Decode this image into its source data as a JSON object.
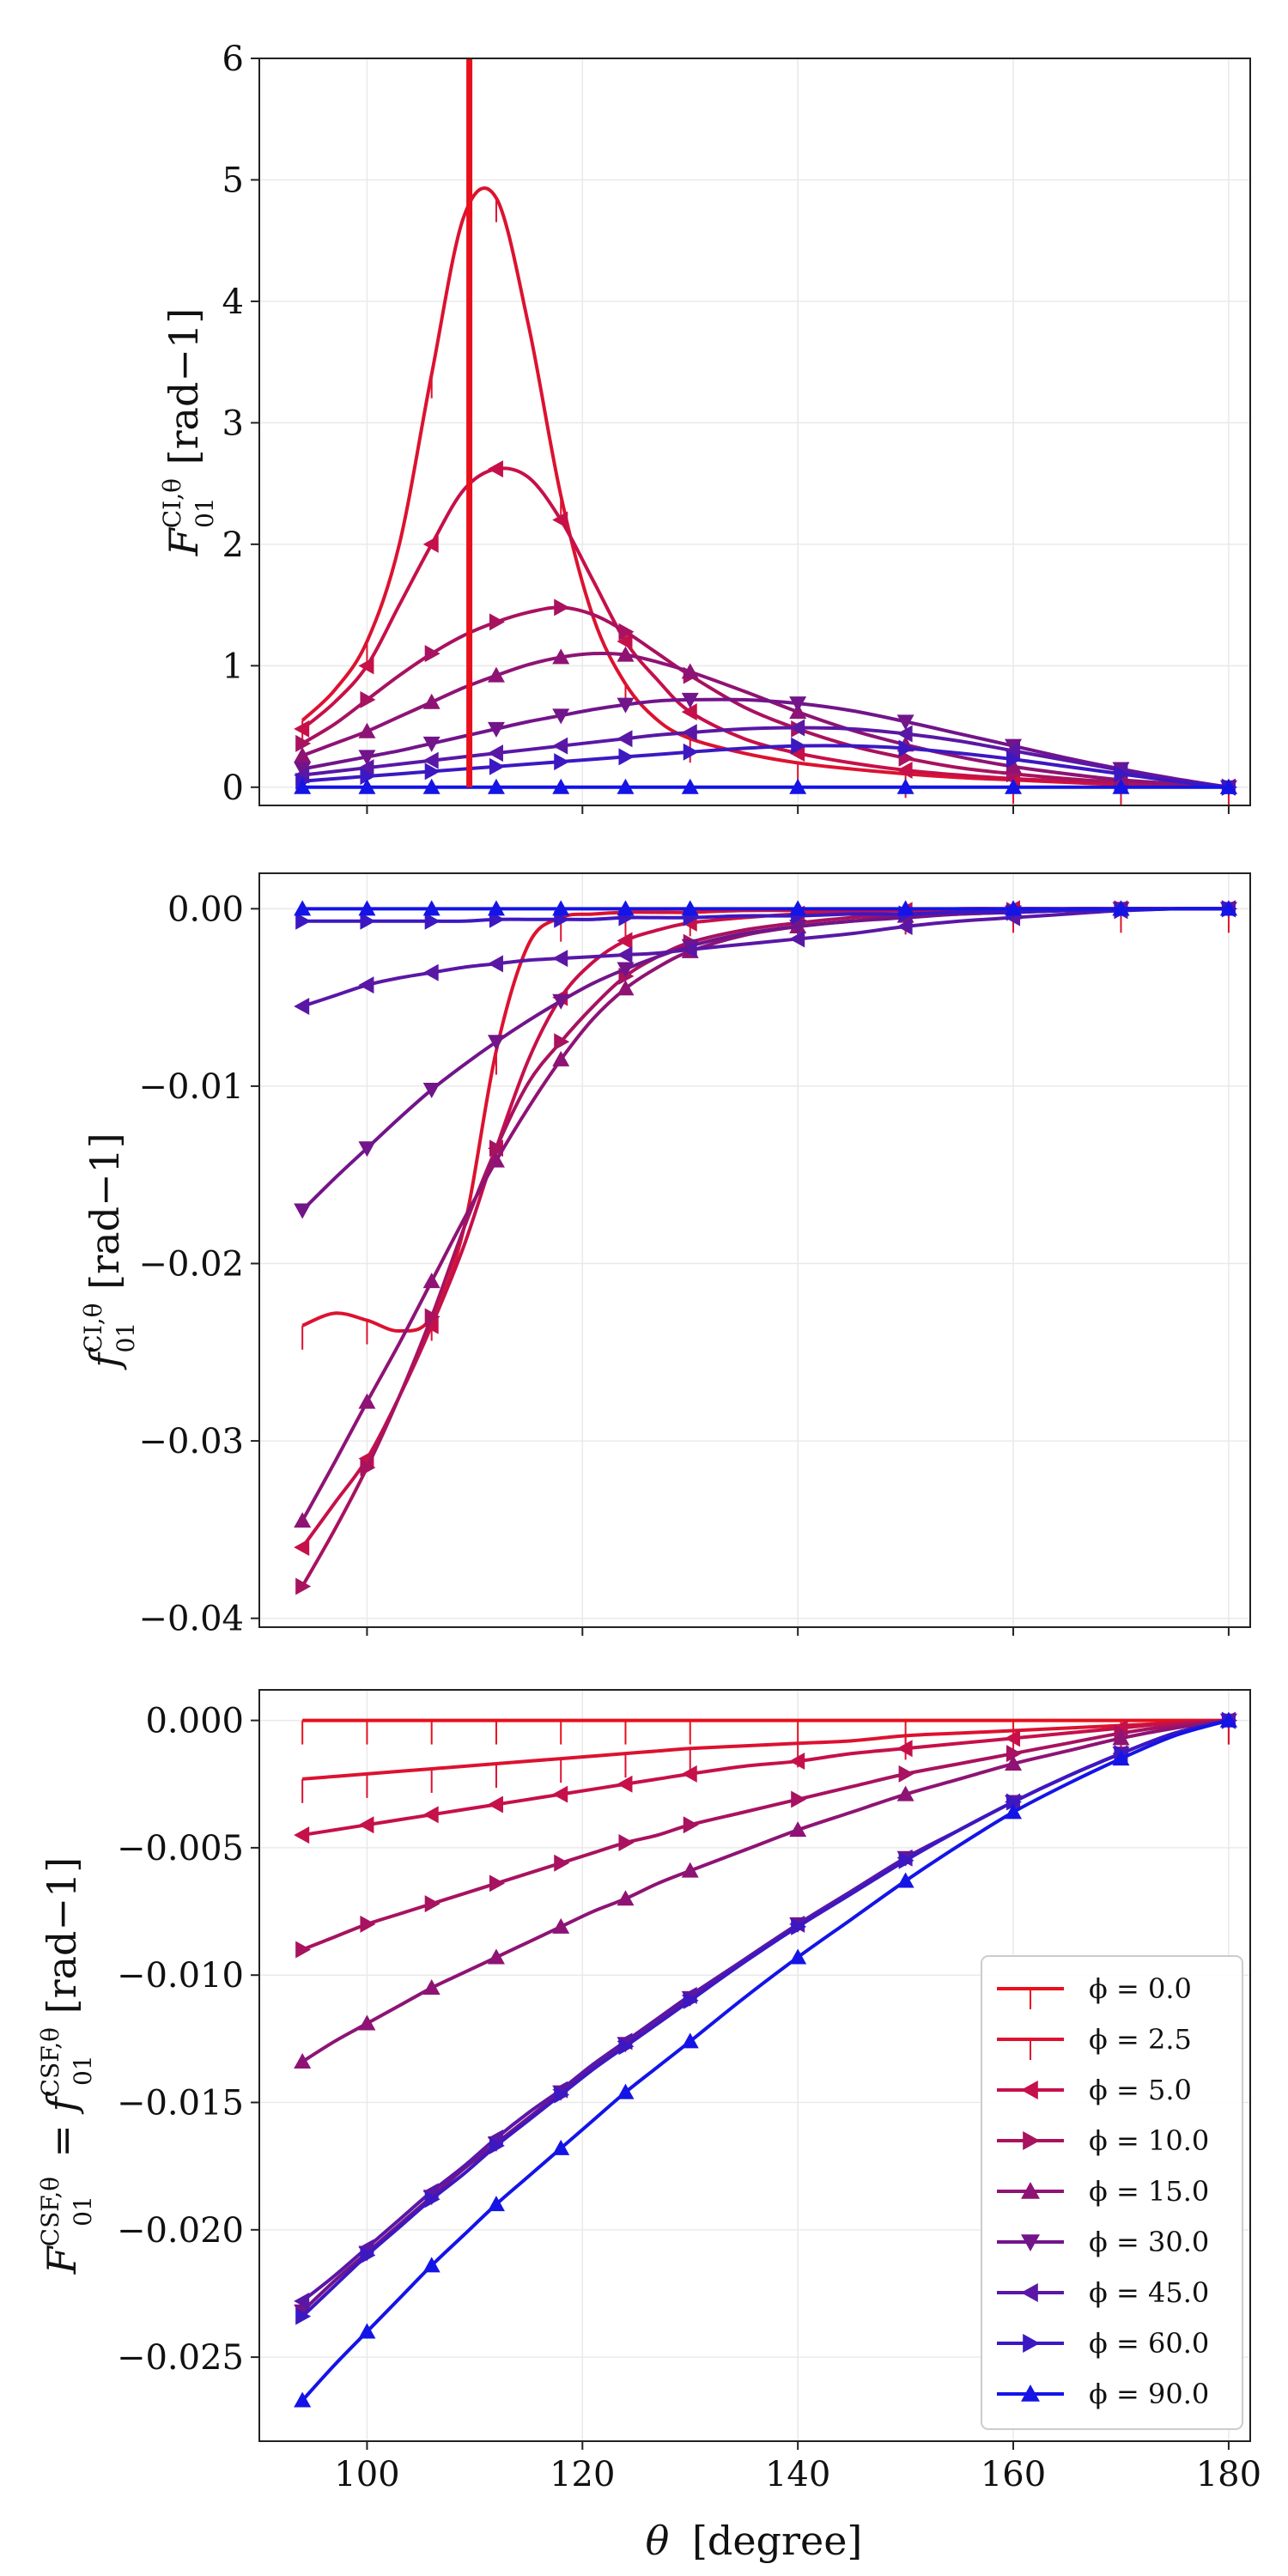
{
  "chart_data": {
    "type": "line",
    "shared_x": {
      "label_symbol": "θ",
      "label_unit": "[degree]",
      "range": [
        90,
        182
      ],
      "ticks": [
        100,
        120,
        140,
        160,
        180
      ],
      "tick_labels": [
        "100",
        "120",
        "140",
        "160",
        "180"
      ]
    },
    "legend": {
      "placement": "lower-right of bottom panel",
      "entries": [
        {
          "label": "ϕ = 0.0",
          "color": "#e8101c",
          "marker": "vline"
        },
        {
          "label": "ϕ = 2.5",
          "color": "#dc1230",
          "marker": "vline"
        },
        {
          "label": "ϕ = 5.0",
          "color": "#c61049",
          "marker": "tri-left"
        },
        {
          "label": "ϕ = 10.0",
          "color": "#a8125f",
          "marker": "tri-right"
        },
        {
          "label": "ϕ = 15.0",
          "color": "#8e1374",
          "marker": "tri-up"
        },
        {
          "label": "ϕ = 30.0",
          "color": "#72148a",
          "marker": "tri-down"
        },
        {
          "label": "ϕ = 45.0",
          "color": "#5a17a6",
          "marker": "tri-left"
        },
        {
          "label": "ϕ = 60.0",
          "color": "#3c18c2",
          "marker": "tri-right"
        },
        {
          "label": "ϕ = 90.0",
          "color": "#1414e6",
          "marker": "tri-up"
        }
      ]
    },
    "panels": [
      {
        "id": "top",
        "ylabel": "F₀₁^{CI,θ} [rad⁻¹]",
        "ylabel_base": "F",
        "ylabel_sub": "01",
        "ylabel_sup": "CI,θ",
        "ylabel_unit": "[rad−1]",
        "ylim": [
          -0.15,
          6
        ],
        "yticks": [
          0,
          1,
          2,
          3,
          4,
          5,
          6
        ],
        "ytick_labels": [
          "0",
          "1",
          "2",
          "3",
          "4",
          "5",
          "6"
        ],
        "vertical_line_x": 109.5,
        "x": [
          94,
          97,
          100,
          103,
          106,
          109,
          112,
          115,
          118,
          121,
          124,
          127,
          130,
          135,
          140,
          145,
          150,
          155,
          160,
          165,
          170,
          175,
          180
        ],
        "series": [
          {
            "name": "ϕ = 2.5",
            "values": [
              0.55,
              0.8,
              1.2,
              2.0,
              3.4,
              4.7,
              4.85,
              3.8,
              2.4,
              1.4,
              0.85,
              0.55,
              0.4,
              0.28,
              0.2,
              0.15,
              0.11,
              0.08,
              0.06,
              0.04,
              0.02,
              0.01,
              0.0
            ]
          },
          {
            "name": "ϕ = 5.0",
            "values": [
              0.48,
              0.7,
              1.0,
              1.5,
              2.0,
              2.45,
              2.62,
              2.55,
              2.2,
              1.7,
              1.2,
              0.88,
              0.62,
              0.4,
              0.28,
              0.2,
              0.14,
              0.1,
              0.07,
              0.05,
              0.03,
              0.01,
              0.0
            ]
          },
          {
            "name": "ϕ = 10.0",
            "values": [
              0.36,
              0.52,
              0.72,
              0.92,
              1.1,
              1.25,
              1.36,
              1.44,
              1.48,
              1.42,
              1.28,
              1.1,
              0.92,
              0.66,
              0.48,
              0.34,
              0.24,
              0.16,
              0.11,
              0.07,
              0.04,
              0.02,
              0.0
            ]
          },
          {
            "name": "ϕ = 15.0",
            "values": [
              0.26,
              0.36,
              0.46,
              0.58,
              0.7,
              0.82,
              0.92,
              1.01,
              1.07,
              1.1,
              1.09,
              1.03,
              0.95,
              0.79,
              0.62,
              0.47,
              0.35,
              0.25,
              0.17,
              0.11,
              0.06,
              0.03,
              0.0
            ]
          },
          {
            "name": "ϕ = 30.0",
            "values": [
              0.15,
              0.2,
              0.25,
              0.3,
              0.36,
              0.42,
              0.48,
              0.54,
              0.59,
              0.64,
              0.68,
              0.71,
              0.72,
              0.72,
              0.69,
              0.63,
              0.54,
              0.44,
              0.34,
              0.24,
              0.15,
              0.07,
              0.0
            ]
          },
          {
            "name": "ϕ = 45.0",
            "values": [
              0.1,
              0.13,
              0.16,
              0.19,
              0.22,
              0.25,
              0.28,
              0.31,
              0.34,
              0.37,
              0.4,
              0.43,
              0.45,
              0.48,
              0.49,
              0.48,
              0.44,
              0.38,
              0.3,
              0.22,
              0.14,
              0.06,
              0.0
            ]
          },
          {
            "name": "ϕ = 60.0",
            "values": [
              0.05,
              0.07,
              0.09,
              0.11,
              0.13,
              0.15,
              0.17,
              0.19,
              0.21,
              0.23,
              0.25,
              0.27,
              0.29,
              0.32,
              0.34,
              0.34,
              0.32,
              0.28,
              0.23,
              0.17,
              0.11,
              0.05,
              0.0
            ]
          },
          {
            "name": "ϕ = 90.0",
            "values": [
              0.0,
              0.0,
              0.0,
              0.0,
              0.0,
              0.0,
              0.0,
              0.0,
              0.0,
              0.0,
              0.0,
              0.0,
              0.0,
              0.0,
              0.0,
              0.0,
              0.0,
              0.0,
              0.0,
              0.0,
              0.0,
              0.0,
              0.0
            ]
          }
        ]
      },
      {
        "id": "middle",
        "ylabel": "f₀₁^{CI,θ} [rad⁻¹]",
        "ylabel_base": "f",
        "ylabel_sub": "01",
        "ylabel_sup": "CI,θ",
        "ylabel_unit": "[rad−1]",
        "ylim": [
          -0.0405,
          0.002
        ],
        "yticks": [
          0.0,
          -0.01,
          -0.02,
          -0.03,
          -0.04
        ],
        "ytick_labels": [
          "0.00",
          "−0.01",
          "−0.02",
          "−0.03",
          "−0.04"
        ],
        "x": [
          94,
          97,
          100,
          103,
          106,
          109,
          112,
          115,
          118,
          121,
          124,
          127,
          130,
          135,
          140,
          145,
          150,
          155,
          160,
          165,
          170,
          175,
          180
        ],
        "series": [
          {
            "name": "ϕ = 2.5",
            "values": [
              -0.0235,
              -0.0228,
              -0.0232,
              -0.0238,
              -0.023,
              -0.018,
              -0.008,
              -0.002,
              -0.0005,
              -0.0003,
              -0.0002,
              -0.0002,
              -0.0002,
              -0.0001,
              -0.0001,
              -0.0001,
              -0.0001,
              0.0,
              0.0,
              0.0,
              0.0,
              0.0,
              0.0
            ]
          },
          {
            "name": "ϕ = 5.0",
            "values": [
              -0.036,
              -0.0335,
              -0.031,
              -0.0275,
              -0.0235,
              -0.019,
              -0.0135,
              -0.0085,
              -0.005,
              -0.003,
              -0.0018,
              -0.0012,
              -0.0008,
              -0.0005,
              -0.0003,
              -0.0002,
              -0.0001,
              -0.0001,
              0.0,
              0.0,
              0.0,
              0.0,
              0.0
            ]
          },
          {
            "name": "ϕ = 10.0",
            "values": [
              -0.0382,
              -0.035,
              -0.0315,
              -0.0275,
              -0.023,
              -0.018,
              -0.0135,
              -0.0098,
              -0.0075,
              -0.0055,
              -0.0038,
              -0.0027,
              -0.0019,
              -0.0012,
              -0.0008,
              -0.0005,
              -0.0003,
              -0.0002,
              -0.0001,
              0.0,
              0.0,
              0.0,
              0.0
            ]
          },
          {
            "name": "ϕ = 15.0",
            "values": [
              -0.0345,
              -0.0312,
              -0.0278,
              -0.0245,
              -0.021,
              -0.0175,
              -0.0142,
              -0.0112,
              -0.0085,
              -0.0062,
              -0.0045,
              -0.0033,
              -0.0024,
              -0.0015,
              -0.001,
              -0.0007,
              -0.0004,
              -0.0003,
              -0.0002,
              -0.0001,
              0.0,
              0.0,
              0.0
            ]
          },
          {
            "name": "ϕ = 30.0",
            "values": [
              -0.017,
              -0.0152,
              -0.0135,
              -0.0118,
              -0.0102,
              -0.0088,
              -0.0075,
              -0.0063,
              -0.0052,
              -0.0042,
              -0.0034,
              -0.0027,
              -0.0021,
              -0.0014,
              -0.001,
              -0.0007,
              -0.0005,
              -0.0003,
              -0.0002,
              -0.0001,
              0.0,
              0.0,
              0.0
            ]
          },
          {
            "name": "ϕ = 45.0",
            "values": [
              -0.0055,
              -0.0049,
              -0.0043,
              -0.0039,
              -0.0036,
              -0.0033,
              -0.0031,
              -0.0029,
              -0.0028,
              -0.0027,
              -0.0026,
              -0.0025,
              -0.0023,
              -0.002,
              -0.0017,
              -0.0014,
              -0.001,
              -0.0007,
              -0.0005,
              -0.0003,
              -0.0001,
              0.0,
              0.0
            ]
          },
          {
            "name": "ϕ = 60.0",
            "values": [
              -0.0007,
              -0.0007,
              -0.0007,
              -0.0007,
              -0.0007,
              -0.0007,
              -0.0006,
              -0.0006,
              -0.0006,
              -0.0006,
              -0.0005,
              -0.0005,
              -0.0005,
              -0.0004,
              -0.0004,
              -0.0003,
              -0.0003,
              -0.0002,
              -0.0002,
              -0.0001,
              -0.0001,
              0.0,
              0.0
            ]
          },
          {
            "name": "ϕ = 90.0",
            "values": [
              0.0,
              0.0,
              0.0,
              0.0,
              0.0,
              0.0,
              0.0,
              0.0,
              0.0,
              0.0,
              0.0,
              0.0,
              0.0,
              0.0,
              0.0,
              0.0,
              0.0,
              0.0,
              0.0,
              0.0,
              0.0,
              0.0,
              0.0
            ]
          }
        ]
      },
      {
        "id": "bottom",
        "ylabel": "F₀₁^{CSF,θ} = f₀₁^{CSF,θ} [rad⁻¹]",
        "ylabel_base": "F",
        "ylabel_sub": "01",
        "ylabel_sup": "CSF,θ",
        "ylabel_eq": "=",
        "ylabel_base2": "f",
        "ylabel_sub2": "01",
        "ylabel_sup2": "CSF,θ",
        "ylabel_unit": "[rad−1]",
        "ylim": [
          -0.0283,
          0.0012
        ],
        "yticks": [
          0.0,
          -0.005,
          -0.01,
          -0.015,
          -0.02,
          -0.025
        ],
        "ytick_labels": [
          "0.000",
          "−0.005",
          "−0.010",
          "−0.015",
          "−0.020",
          "−0.025"
        ],
        "x": [
          94,
          97,
          100,
          103,
          106,
          109,
          112,
          115,
          118,
          121,
          124,
          127,
          130,
          135,
          140,
          145,
          150,
          155,
          160,
          165,
          170,
          175,
          180
        ],
        "series": [
          {
            "name": "ϕ = 0.0",
            "values": [
              0.0,
              0.0,
              0.0,
              0.0,
              0.0,
              0.0,
              0.0,
              0.0,
              0.0,
              0.0,
              0.0,
              0.0,
              0.0,
              0.0,
              0.0,
              0.0,
              0.0,
              0.0,
              0.0,
              0.0,
              0.0,
              0.0,
              0.0
            ]
          },
          {
            "name": "ϕ = 2.5",
            "values": [
              -0.0023,
              -0.0022,
              -0.0021,
              -0.002,
              -0.0019,
              -0.0018,
              -0.0017,
              -0.0016,
              -0.0015,
              -0.0014,
              -0.0013,
              -0.0012,
              -0.0011,
              -0.001,
              -0.0009,
              -0.0008,
              -0.0006,
              -0.0005,
              -0.0004,
              -0.0003,
              -0.0002,
              -0.0001,
              0.0
            ]
          },
          {
            "name": "ϕ = 5.0",
            "values": [
              -0.0045,
              -0.0043,
              -0.0041,
              -0.0039,
              -0.0037,
              -0.0035,
              -0.0033,
              -0.0031,
              -0.0029,
              -0.0027,
              -0.0025,
              -0.0023,
              -0.0021,
              -0.0018,
              -0.0016,
              -0.0013,
              -0.0011,
              -0.0009,
              -0.0007,
              -0.0005,
              -0.0003,
              -0.0001,
              0.0
            ]
          },
          {
            "name": "ϕ = 10.0",
            "values": [
              -0.009,
              -0.0085,
              -0.008,
              -0.0076,
              -0.0072,
              -0.0068,
              -0.0064,
              -0.006,
              -0.0056,
              -0.0052,
              -0.0048,
              -0.0045,
              -0.0041,
              -0.0036,
              -0.0031,
              -0.0026,
              -0.0021,
              -0.0017,
              -0.0013,
              -0.0009,
              -0.0005,
              -0.0002,
              0.0
            ]
          },
          {
            "name": "ϕ = 15.0",
            "values": [
              -0.0134,
              -0.0126,
              -0.0119,
              -0.0112,
              -0.0105,
              -0.0099,
              -0.0093,
              -0.0087,
              -0.0081,
              -0.0075,
              -0.007,
              -0.0064,
              -0.0059,
              -0.0051,
              -0.0043,
              -0.0036,
              -0.0029,
              -0.0023,
              -0.0017,
              -0.0012,
              -0.0007,
              -0.0003,
              0.0
            ]
          },
          {
            "name": "ϕ = 30.0",
            "values": [
              -0.0232,
              -0.022,
              -0.0209,
              -0.0198,
              -0.0187,
              -0.0176,
              -0.0166,
              -0.0156,
              -0.0146,
              -0.0136,
              -0.0127,
              -0.0118,
              -0.0109,
              -0.0094,
              -0.008,
              -0.0067,
              -0.0054,
              -0.0043,
              -0.0032,
              -0.0022,
              -0.0013,
              -0.0005,
              0.0
            ]
          },
          {
            "name": "ϕ = 45.0",
            "values": [
              -0.0228,
              -0.0218,
              -0.0207,
              -0.0196,
              -0.0185,
              -0.0175,
              -0.0164,
              -0.0154,
              -0.0145,
              -0.0135,
              -0.0126,
              -0.0117,
              -0.0108,
              -0.0094,
              -0.008,
              -0.0067,
              -0.0054,
              -0.0043,
              -0.0032,
              -0.0022,
              -0.0013,
              -0.0005,
              0.0
            ]
          },
          {
            "name": "ϕ = 60.0",
            "values": [
              -0.0234,
              -0.0222,
              -0.021,
              -0.0199,
              -0.0188,
              -0.0178,
              -0.0167,
              -0.0157,
              -0.0147,
              -0.0137,
              -0.0128,
              -0.0119,
              -0.011,
              -0.0095,
              -0.0081,
              -0.0068,
              -0.0055,
              -0.0043,
              -0.0032,
              -0.0022,
              -0.0013,
              -0.0005,
              0.0
            ]
          },
          {
            "name": "ϕ = 90.0",
            "values": [
              -0.0267,
              -0.0253,
              -0.024,
              -0.0227,
              -0.0214,
              -0.0202,
              -0.019,
              -0.0179,
              -0.0168,
              -0.0157,
              -0.0146,
              -0.0136,
              -0.0126,
              -0.0109,
              -0.0093,
              -0.0078,
              -0.0063,
              -0.0049,
              -0.0036,
              -0.0025,
              -0.0015,
              -0.0006,
              0.0
            ]
          }
        ]
      }
    ]
  }
}
